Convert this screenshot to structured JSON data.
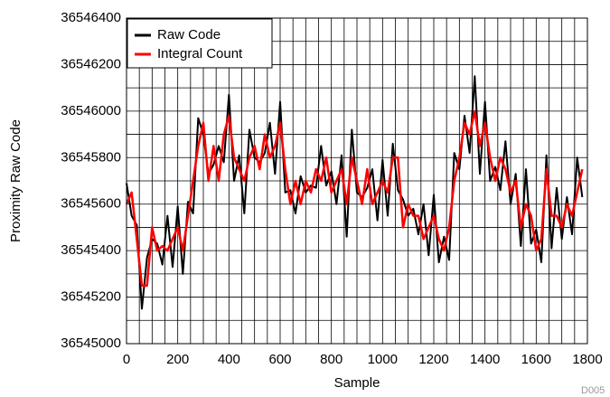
{
  "chart_data": {
    "type": "line",
    "x_label": "Sample",
    "y_label": "Proximity Raw Code",
    "note": "D005",
    "grid": true,
    "legend": "upper-left",
    "xlim": [
      0,
      1800
    ],
    "xticks": [
      0,
      200,
      400,
      600,
      800,
      1000,
      1200,
      1400,
      1600,
      1800
    ],
    "ylim": [
      36545000,
      36546400
    ],
    "yticks": [
      36545000,
      36545200,
      36545400,
      36545600,
      36545800,
      36546000,
      36546200,
      36546400
    ],
    "x": [
      0,
      20,
      40,
      60,
      80,
      100,
      120,
      140,
      160,
      180,
      200,
      220,
      240,
      260,
      280,
      300,
      320,
      340,
      360,
      380,
      400,
      420,
      440,
      460,
      480,
      500,
      520,
      540,
      560,
      580,
      600,
      620,
      640,
      660,
      680,
      700,
      720,
      740,
      760,
      780,
      800,
      820,
      840,
      860,
      880,
      900,
      920,
      940,
      960,
      980,
      1000,
      1020,
      1040,
      1060,
      1080,
      1100,
      1120,
      1140,
      1160,
      1180,
      1200,
      1220,
      1240,
      1260,
      1280,
      1300,
      1320,
      1340,
      1360,
      1380,
      1400,
      1420,
      1440,
      1460,
      1480,
      1500,
      1520,
      1540,
      1560,
      1580,
      1600,
      1620,
      1640,
      1660,
      1680,
      1700,
      1720,
      1740,
      1760,
      1780
    ],
    "series": [
      {
        "name": "Raw Code",
        "color": "#000000",
        "values": [
          36545690,
          36545550,
          36545510,
          36545150,
          36545370,
          36545450,
          36545430,
          36545340,
          36545550,
          36545330,
          36545590,
          36545300,
          36545610,
          36545560,
          36545970,
          36545900,
          36545730,
          36545770,
          36545850,
          36545780,
          36546070,
          36545700,
          36545810,
          36545560,
          36545920,
          36545800,
          36545780,
          36545820,
          36545950,
          36545730,
          36546040,
          36545650,
          36545660,
          36545560,
          36545720,
          36545650,
          36545680,
          36545670,
          36545850,
          36545680,
          36545740,
          36545600,
          36545810,
          36545460,
          36545920,
          36545650,
          36545630,
          36545670,
          36545750,
          36545530,
          36545790,
          36545550,
          36545860,
          36545660,
          36545620,
          36545550,
          36545580,
          36545470,
          36545600,
          36545380,
          36545640,
          36545350,
          36545460,
          36545360,
          36545820,
          36545750,
          36545980,
          36545820,
          36546150,
          36545730,
          36546040,
          36545700,
          36545760,
          36545660,
          36545870,
          36545600,
          36545730,
          36545420,
          36545750,
          36545430,
          36545490,
          36545350,
          36545810,
          36545410,
          36545670,
          36545450,
          36545630,
          36545470,
          36545800,
          36545630
        ]
      },
      {
        "name": "Integral Count",
        "color": "#ff0000",
        "values": [
          36545600,
          36545650,
          36545450,
          36545250,
          36545250,
          36545500,
          36545400,
          36545420,
          36545400,
          36545450,
          36545500,
          36545400,
          36545550,
          36545700,
          36545850,
          36545950,
          36545700,
          36545850,
          36545700,
          36545900,
          36545980,
          36545800,
          36545750,
          36545700,
          36545800,
          36545850,
          36545750,
          36545900,
          36545800,
          36545850,
          36545950,
          36545750,
          36545600,
          36545700,
          36545600,
          36545700,
          36545650,
          36545750,
          36545700,
          36545800,
          36545650,
          36545700,
          36545750,
          36545600,
          36545800,
          36545700,
          36545600,
          36545750,
          36545600,
          36545650,
          36545700,
          36545650,
          36545800,
          36545800,
          36545500,
          36545600,
          36545550,
          36545550,
          36545450,
          36545500,
          36545550,
          36545450,
          36545400,
          36545500,
          36545700,
          36545800,
          36545950,
          36545900,
          36546000,
          36545850,
          36545950,
          36545800,
          36545700,
          36545800,
          36545750,
          36545650,
          36545700,
          36545500,
          36545600,
          36545550,
          36545400,
          36545450,
          36545750,
          36545550,
          36545550,
          36545500,
          36545600,
          36545550,
          36545650,
          36545750
        ]
      }
    ]
  }
}
